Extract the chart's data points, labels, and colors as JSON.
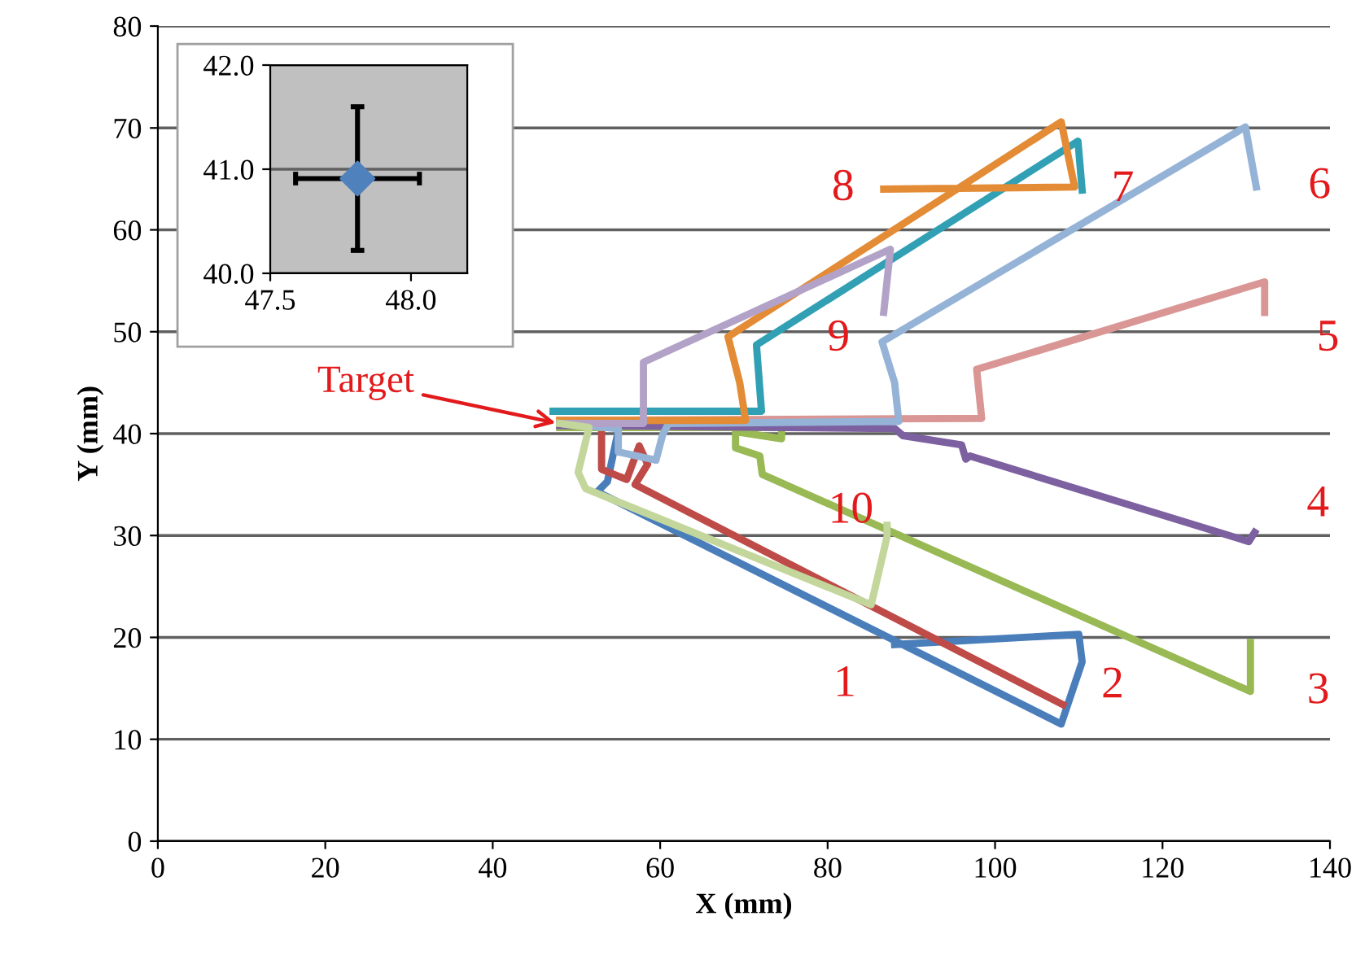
{
  "chart_data": [
    {
      "type": "line",
      "xlabel": "X (mm)",
      "ylabel": "Y (mm)",
      "xlim": [
        0,
        140
      ],
      "xticks": [
        0,
        20,
        40,
        60,
        80,
        100,
        120,
        140
      ],
      "ylim": [
        0,
        80
      ],
      "yticks": [
        0,
        10,
        20,
        30,
        40,
        50,
        60,
        70,
        80
      ],
      "grid": "y",
      "legend": false,
      "marker": "none",
      "line_style": "solid",
      "series": [
        {
          "name": "1",
          "color": "#4a7ebb",
          "x": [
            48,
            55,
            55,
            53.7,
            52.5,
            107.9,
            110.4,
            110,
            88
          ],
          "values": [
            41,
            40.8,
            40.3,
            35.3,
            34.3,
            11.5,
            17.6,
            20.3,
            19.3
          ]
        },
        {
          "name": "2",
          "color": "#be4b48",
          "x": [
            48,
            53,
            53,
            56,
            57.5,
            58.5,
            57,
            108.1
          ],
          "values": [
            41,
            40.8,
            36.5,
            35.5,
            38.8,
            37,
            35,
            13.4
          ]
        },
        {
          "name": "3",
          "color": "#98b954",
          "x": [
            48,
            74.5,
            74.5,
            69,
            69,
            71.9,
            72.2,
            130.5,
            130.5
          ],
          "values": [
            40.6,
            40.6,
            39.5,
            40.2,
            38.6,
            37.8,
            36,
            14.7,
            19.5
          ]
        },
        {
          "name": "4",
          "color": "#7d60a0",
          "x": [
            48,
            88,
            89,
            96,
            96.5,
            97,
            130.3,
            131
          ],
          "values": [
            40.8,
            40.5,
            39.8,
            38.9,
            37.5,
            37.8,
            29.4,
            30.3
          ]
        },
        {
          "name": "5",
          "color": "#d99694",
          "x": [
            48,
            98.4,
            97.8,
            132.2,
            132.2
          ],
          "values": [
            41.3,
            41.5,
            46.3,
            54.9,
            51.9
          ]
        },
        {
          "name": "6",
          "color": "#95b3d7",
          "x": [
            48,
            55,
            55,
            59.5,
            60.3,
            61,
            88.5,
            88,
            86.5,
            129.9,
            131.2
          ],
          "values": [
            41,
            40.5,
            38.2,
            37.4,
            39.9,
            41,
            41.2,
            45,
            49,
            70.1,
            64.2
          ]
        },
        {
          "name": "7",
          "color": "#31a0b4",
          "x": [
            47.2,
            72.1,
            71.5,
            109.9,
            110.4
          ],
          "values": [
            42.2,
            42.2,
            48.7,
            68.7,
            63.9
          ]
        },
        {
          "name": "8",
          "color": "#e38b35",
          "x": [
            48,
            70.2,
            69.5,
            68.1,
            107.9,
            109.5,
            86.7
          ],
          "values": [
            41.3,
            41.3,
            45,
            49.5,
            70.6,
            64.2,
            64
          ]
        },
        {
          "name": "9",
          "color": "#b3a2c7",
          "x": [
            48,
            58,
            58,
            87.5,
            86.7
          ],
          "values": [
            41,
            41,
            47,
            58.1,
            51.9
          ]
        },
        {
          "name": "10",
          "color": "#c3d69b",
          "x": [
            48,
            51.5,
            50.2,
            51.1,
            85.2,
            87.1,
            87.1
          ],
          "values": [
            41,
            40.6,
            36.2,
            34.6,
            23.2,
            29.9,
            31
          ]
        }
      ],
      "annotations": [
        {
          "text": "Target",
          "x": 47.8,
          "y": 41
        }
      ]
    },
    {
      "type": "scatter",
      "x": [
        47.81
      ],
      "values": [
        40.91
      ],
      "errors": [
        0.69
      ],
      "xerrors": [
        0.22
      ],
      "color": "#4f81bd",
      "marker": "diamond",
      "xlim": [
        47.5,
        48.2
      ],
      "xticks": [
        47.5,
        {
          "value": 48,
          "label": "48.0"
        }
      ],
      "ylim": [
        40,
        42
      ],
      "yticks": [
        {
          "value": 40,
          "label": "40.0"
        },
        {
          "value": 41,
          "label": "41.0"
        },
        {
          "value": 42,
          "label": "42.0"
        }
      ],
      "grid": "y",
      "legend": false
    }
  ]
}
